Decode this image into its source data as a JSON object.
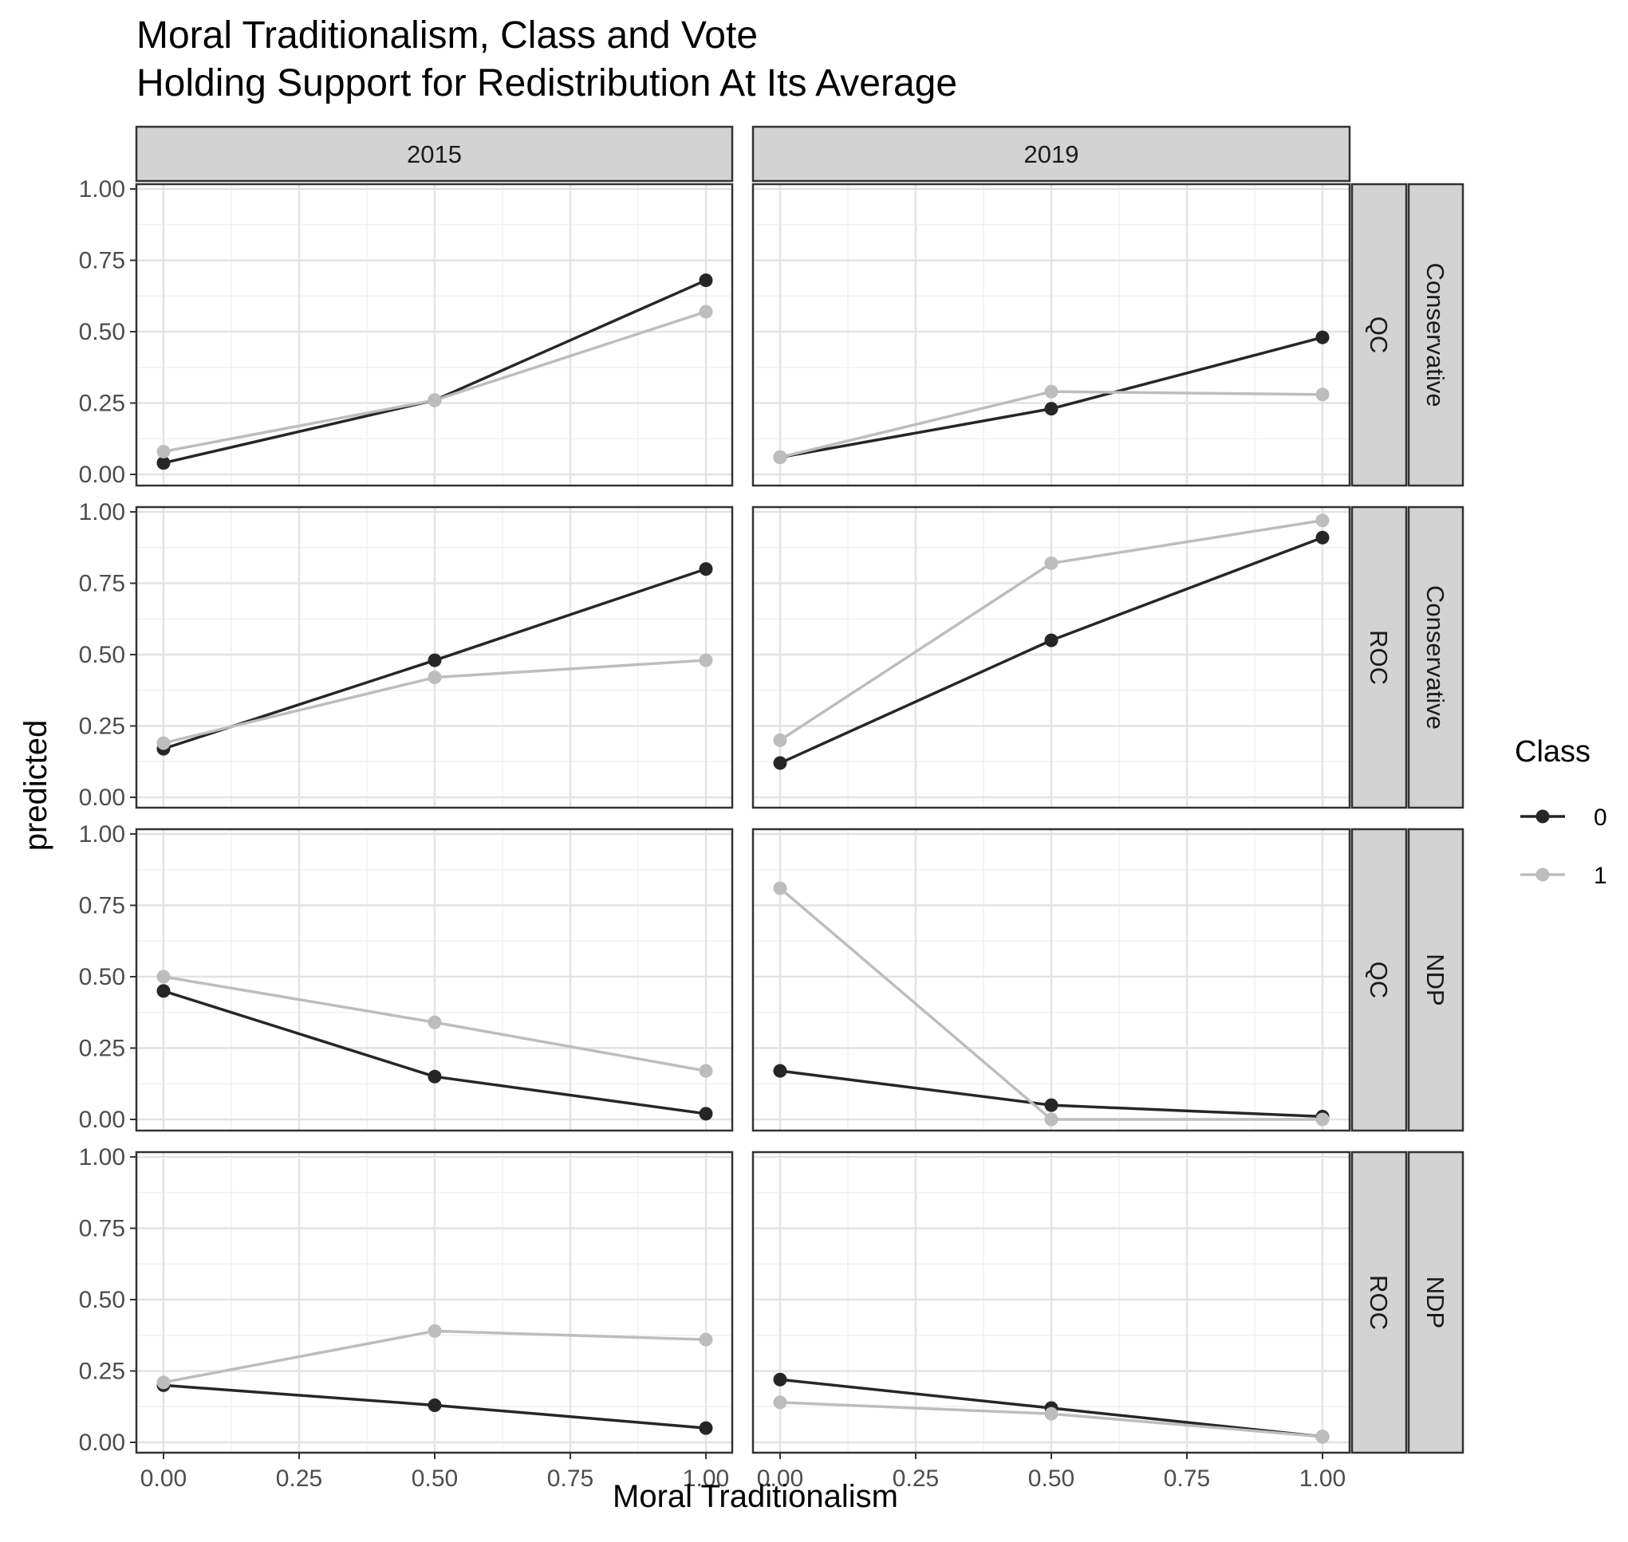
{
  "chart_data": {
    "type": "line",
    "title": "Moral Traditionalism, Class and Vote",
    "subtitle": "Holding Support for Redistribution At Its Average",
    "xlabel": "Moral Traditionalism",
    "ylabel": "predicted",
    "xlim": [
      0,
      1
    ],
    "ylim": [
      0,
      1
    ],
    "x_ticks": [
      "0.00",
      "0.25",
      "0.50",
      "0.75",
      "1.00"
    ],
    "y_ticks": [
      "0.00",
      "0.25",
      "0.50",
      "0.75",
      "1.00"
    ],
    "x": [
      0,
      0.5,
      1
    ],
    "legend": {
      "title": "Class",
      "position": "right",
      "entries": [
        {
          "label": "0",
          "color": "#262626"
        },
        {
          "label": "1",
          "color": "#bdbdbd"
        }
      ]
    },
    "columns": [
      "2015",
      "2019"
    ],
    "rows": [
      {
        "region": "QC",
        "party": "Conservative"
      },
      {
        "region": "ROC",
        "party": "Conservative"
      },
      {
        "region": "QC",
        "party": "NDP"
      },
      {
        "region": "ROC",
        "party": "NDP"
      }
    ],
    "panels": [
      {
        "year": "2015",
        "region": "QC",
        "party": "Conservative",
        "series": [
          {
            "name": "0",
            "values": [
              0.04,
              0.26,
              0.68
            ]
          },
          {
            "name": "1",
            "values": [
              0.08,
              0.26,
              0.57
            ]
          }
        ]
      },
      {
        "year": "2019",
        "region": "QC",
        "party": "Conservative",
        "series": [
          {
            "name": "0",
            "values": [
              0.06,
              0.23,
              0.48
            ]
          },
          {
            "name": "1",
            "values": [
              0.06,
              0.29,
              0.28
            ]
          }
        ]
      },
      {
        "year": "2015",
        "region": "ROC",
        "party": "Conservative",
        "series": [
          {
            "name": "0",
            "values": [
              0.17,
              0.48,
              0.8
            ]
          },
          {
            "name": "1",
            "values": [
              0.19,
              0.42,
              0.48
            ]
          }
        ]
      },
      {
        "year": "2019",
        "region": "ROC",
        "party": "Conservative",
        "series": [
          {
            "name": "0",
            "values": [
              0.12,
              0.55,
              0.91
            ]
          },
          {
            "name": "1",
            "values": [
              0.2,
              0.82,
              0.97
            ]
          }
        ]
      },
      {
        "year": "2015",
        "region": "QC",
        "party": "NDP",
        "series": [
          {
            "name": "0",
            "values": [
              0.45,
              0.15,
              0.02
            ]
          },
          {
            "name": "1",
            "values": [
              0.5,
              0.34,
              0.17
            ]
          }
        ]
      },
      {
        "year": "2019",
        "region": "QC",
        "party": "NDP",
        "series": [
          {
            "name": "0",
            "values": [
              0.17,
              0.05,
              0.01
            ]
          },
          {
            "name": "1",
            "values": [
              0.81,
              0.0,
              0.0
            ]
          }
        ]
      },
      {
        "year": "2015",
        "region": "ROC",
        "party": "NDP",
        "series": [
          {
            "name": "0",
            "values": [
              0.2,
              0.13,
              0.05
            ]
          },
          {
            "name": "1",
            "values": [
              0.21,
              0.39,
              0.36
            ]
          }
        ]
      },
      {
        "year": "2019",
        "region": "ROC",
        "party": "NDP",
        "series": [
          {
            "name": "0",
            "values": [
              0.22,
              0.12,
              0.02
            ]
          },
          {
            "name": "1",
            "values": [
              0.14,
              0.1,
              0.02
            ]
          }
        ]
      }
    ],
    "grid": true,
    "theme_colors": {
      "strip_fill": "#d3d3d3",
      "border": "#333333",
      "grid_major": "#e3e3e3",
      "grid_minor": "#f1f1f1"
    }
  }
}
